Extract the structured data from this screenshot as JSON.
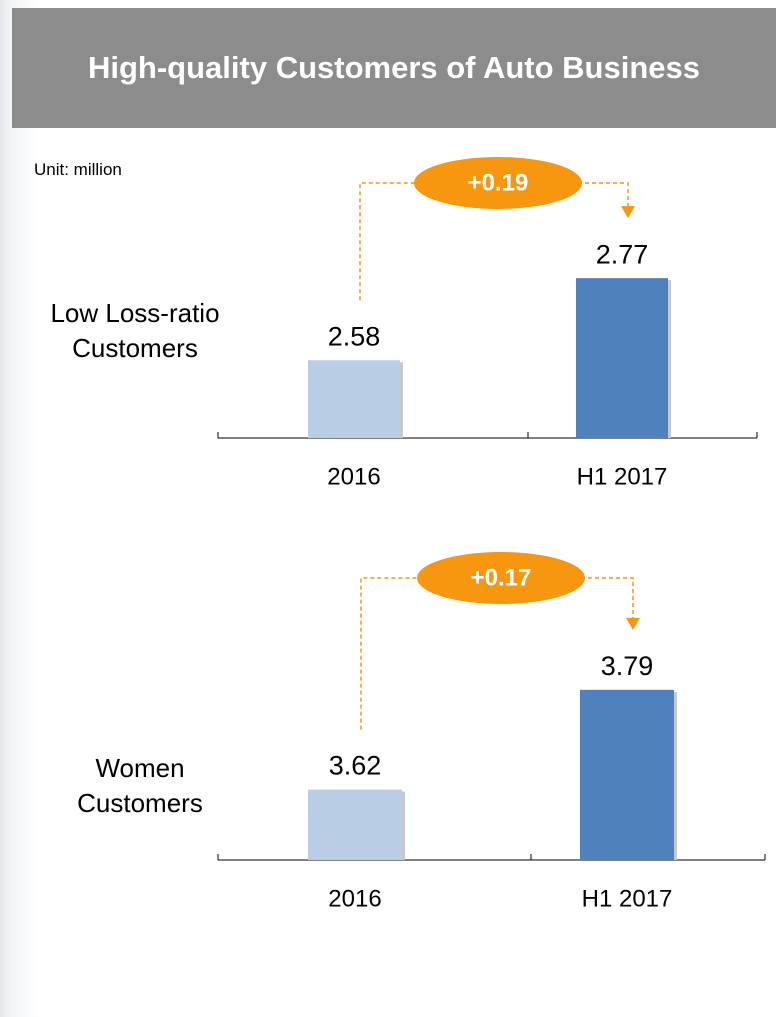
{
  "header": {
    "title": "High-quality Customers of Auto Business",
    "unit": "Unit: million"
  },
  "chart_data": [
    {
      "type": "bar",
      "label_lines": [
        "Low Loss-ratio",
        "Customers"
      ],
      "categories": [
        "2016",
        "H1 2017"
      ],
      "values": [
        2.58,
        2.77
      ],
      "colors": [
        "#b9cde5",
        "#4f81bd"
      ],
      "ylim": [
        2.4,
        2.9
      ],
      "annotation": "+0.19",
      "annotation_color": "#f7960f"
    },
    {
      "type": "bar",
      "label_lines": [
        "Women",
        "Customers"
      ],
      "categories": [
        "2016",
        "H1 2017"
      ],
      "values": [
        3.62,
        3.79
      ],
      "colors": [
        "#b9cde5",
        "#4f81bd"
      ],
      "ylim": [
        3.5,
        3.8
      ],
      "annotation": "+0.17",
      "annotation_color": "#f7960f"
    }
  ]
}
